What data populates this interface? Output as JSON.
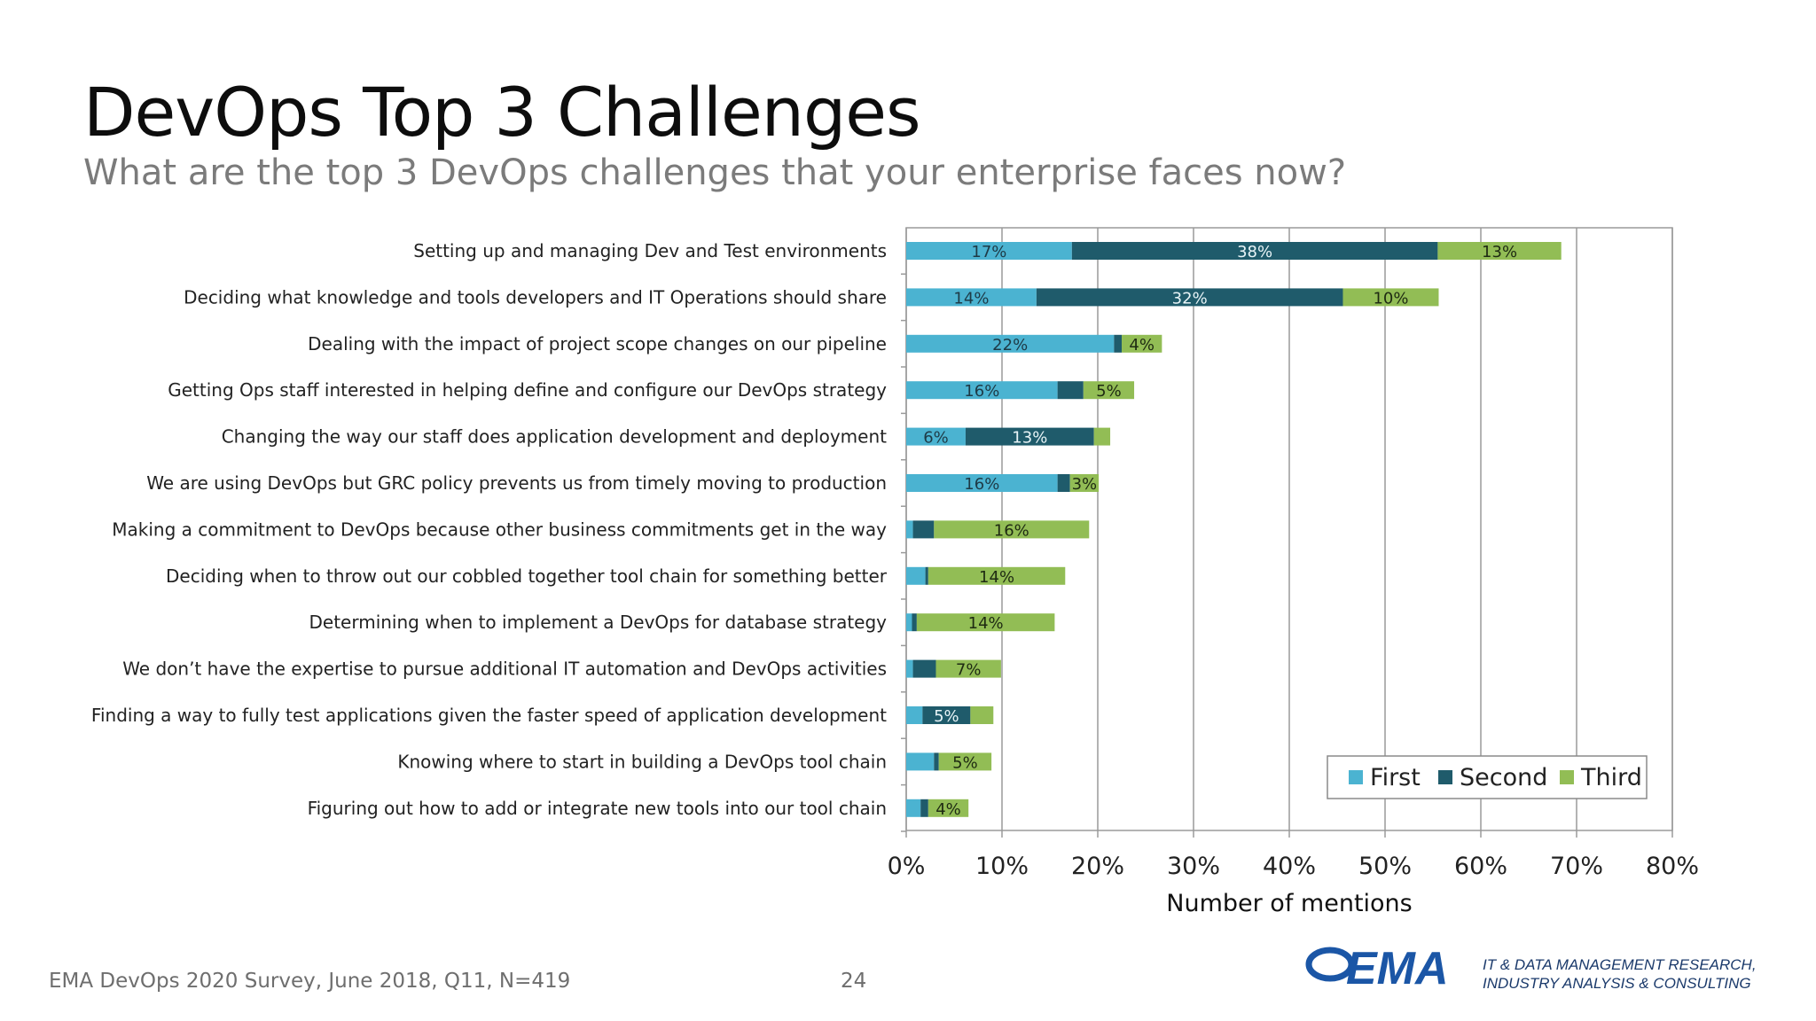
{
  "slide": {
    "title": "DevOps Top 3 Challenges",
    "subtitle": "What are the top 3 DevOps challenges that your enterprise faces now?",
    "footer_source": "EMA DevOps 2020 Survey, June 2018, Q11, N=419",
    "page_number": "24",
    "logo_text": "EMA",
    "tagline_line1": "IT & DATA MANAGEMENT RESEARCH,",
    "tagline_line2": "INDUSTRY ANALYSIS & CONSULTING"
  },
  "colors": {
    "first": "#4bb3d1",
    "second": "#1f5b6b",
    "third": "#92bd55",
    "logo_blue": "#1b56a6"
  },
  "chart_data": {
    "type": "bar",
    "orientation": "horizontal",
    "stacked": true,
    "xlabel": "Number of mentions",
    "xlim": [
      0,
      80
    ],
    "xticks": [
      "0%",
      "10%",
      "20%",
      "30%",
      "40%",
      "50%",
      "60%",
      "70%",
      "80%"
    ],
    "grid": true,
    "legend_position": "bottom-right",
    "categories": [
      "Setting up and managing Dev and Test environments",
      "Deciding what knowledge and tools developers and IT Operations should share",
      "Dealing with the impact of project scope changes on our pipeline",
      "Getting Ops staff interested in helping define and configure our DevOps strategy",
      "Changing the way our staff does application development and deployment",
      "We are using DevOps but GRC policy prevents us from timely moving to production",
      "Making a commitment to DevOps because other business commitments get in the way",
      "Deciding when to throw out our cobbled together tool chain for something better",
      "Determining when to implement a DevOps for database strategy",
      "We don’t have the expertise to pursue additional IT automation and DevOps activities",
      "Finding a way to fully test applications given the faster speed of application development",
      "Knowing where to start in building a DevOps tool chain",
      "Figuring out how to add or integrate new tools into our tool chain"
    ],
    "series": [
      {
        "name": "First",
        "values": [
          17.3,
          13.6,
          21.7,
          15.8,
          6.2,
          15.8,
          0.7,
          2.0,
          0.6,
          0.7,
          1.7,
          2.9,
          1.5
        ],
        "labels": [
          "17%",
          "14%",
          "22%",
          "16%",
          "6%",
          "16%",
          "",
          "",
          "",
          "",
          "",
          "",
          ""
        ]
      },
      {
        "name": "Second",
        "values": [
          38.2,
          32.0,
          0.8,
          2.7,
          13.4,
          1.3,
          2.2,
          0.3,
          0.5,
          2.4,
          5.0,
          0.5,
          0.8
        ],
        "labels": [
          "38%",
          "32%",
          "",
          "",
          "13%",
          "",
          "",
          "",
          "",
          "",
          "5%",
          "",
          ""
        ]
      },
      {
        "name": "Third",
        "values": [
          12.9,
          10.0,
          4.2,
          5.3,
          1.7,
          3.0,
          16.2,
          14.3,
          14.4,
          6.8,
          2.4,
          5.5,
          4.2
        ],
        "labels": [
          "13%",
          "10%",
          "4%",
          "5%",
          "",
          "3%",
          "16%",
          "14%",
          "14%",
          "7%",
          "",
          "5%",
          "4%"
        ]
      }
    ]
  }
}
